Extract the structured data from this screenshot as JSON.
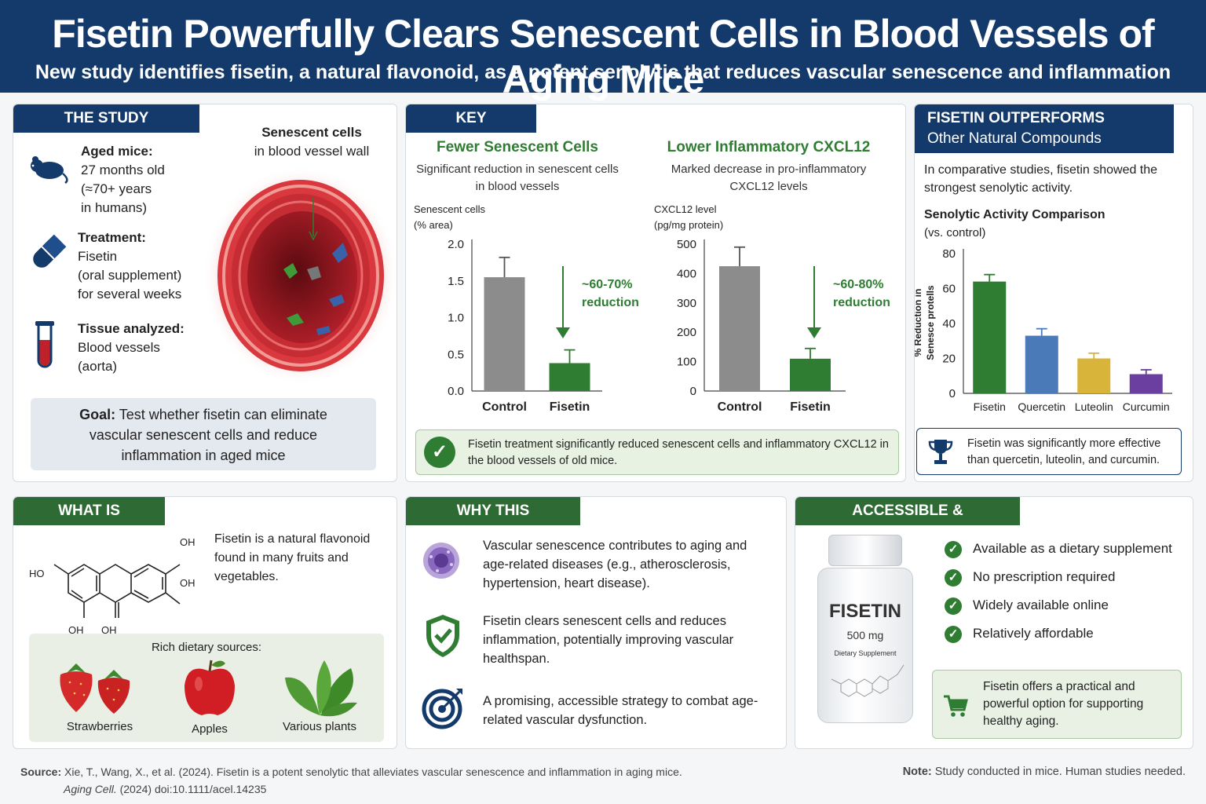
{
  "header": {
    "title": "Fisetin Powerfully Clears Senescent Cells in Blood Vessels of Aging Mice",
    "subtitle": "New study identifies fisetin, a natural flavonoid, as a potent senolytic that reduces vascular senescence and inflammation"
  },
  "study": {
    "tab": "THE STUDY",
    "items": [
      {
        "label": "Aged mice:",
        "lines": [
          "27 months old",
          "(≈70+ years",
          "in humans)"
        ],
        "icon": "mouse-icon"
      },
      {
        "label": "Treatment:",
        "lines": [
          "Fisetin",
          "(oral supplement)",
          "for several weeks"
        ],
        "icon": "capsule-icon"
      },
      {
        "label": "Tissue analyzed:",
        "lines": [
          "Blood vessels",
          "(aorta)"
        ],
        "icon": "test-tube-icon"
      }
    ],
    "vessel_label_bold": "Senescent cells",
    "vessel_label": "in blood vessel wall",
    "goal_bold": "Goal:",
    "goal_text": " Test whether fisetin can eliminate vascular senescent cells and reduce inflammation in aged mice"
  },
  "results": {
    "tab": "KEY RESULTS",
    "chart1": {
      "title": "Fewer Senescent Cells",
      "desc": "Significant reduction in senescent cells in blood vessels",
      "reduction": "~60-70%",
      "reduction2": "reduction"
    },
    "chart2": {
      "title": "Lower Inflammatory CXCL12",
      "desc": "Marked decrease in pro-inflammatory CXCL12 levels",
      "reduction": "~60-80%",
      "reduction2": "reduction"
    },
    "summary": "Fisetin treatment significantly reduced senescent cells and inflammatory CXCL12 in the blood vessels of old mice."
  },
  "outperform": {
    "tab1": "FISETIN OUTPERFORMS",
    "tab2": "Other Natural Compounds",
    "text": "In comparative studies, fisetin showed the strongest senolytic activity.",
    "chart_title": "Senolytic Activity Comparison",
    "chart_sub": "(vs. control)",
    "note": "Fisetin was significantly more effective than quercetin, luteolin, and curcumin."
  },
  "what": {
    "tab": "WHAT IS FISETIN?",
    "text": "Fisetin is a natural flavonoid found in many fruits and vegetables.",
    "sources_title": "Rich dietary sources:",
    "sources": [
      "Strawberries",
      "Apples",
      "Various plants"
    ],
    "mol": {
      "oh1": "OH",
      "oh2": "OH",
      "ho": "HO",
      "oh3": "OH",
      "oh4": "OH"
    }
  },
  "why": {
    "tab": "WHY THIS MATTERS",
    "items": [
      {
        "text": "Vascular senescence contributes to aging and age-related diseases (e.g., atherosclerosis, hypertension, heart disease).",
        "icon": "cell-icon"
      },
      {
        "text": "Fisetin clears senescent cells and reduces inflammation, potentially improving vascular healthspan.",
        "icon": "shield-check-icon"
      },
      {
        "text": "A promising, accessible strategy to combat age-related vascular dysfunction.",
        "icon": "target-icon"
      }
    ]
  },
  "access": {
    "tab": "ACCESSIBLE & AFFORDABLE",
    "bottle_name": "FISETIN",
    "bottle_dose": "500 mg",
    "bottle_type": "Dietary Supplement",
    "checks": [
      "Available as a dietary supplement",
      "No prescription required",
      "Widely available online",
      "Relatively affordable"
    ],
    "note": "Fisetin offers a practical and powerful option for supporting healthy aging."
  },
  "footer": {
    "source_label": "Source:",
    "source": "Xie, T., Wang, X., et al. (2024). Fisetin is a potent senolytic that alleviates vascular senescence and inflammation in aging mice.",
    "journal": "Aging Cell.",
    "journal_rest": " (2024) doi:10.1111/acel.14235",
    "note_label": "Note:",
    "note": " Study conducted in mice. Human studies needed."
  },
  "colors": {
    "navy": "#133a6b",
    "green": "#2e7d32",
    "gray_bar": "#8c8c8c",
    "blue_bar": "#4a7ab8",
    "yellow_bar": "#d9b43a",
    "purple_bar": "#6a3fa0"
  },
  "chart_data": [
    {
      "type": "bar",
      "ylabel": "Senescent cells (% area)",
      "categories": [
        "Control",
        "Fisetin"
      ],
      "values": [
        1.55,
        0.38
      ],
      "errors": [
        0.27,
        0.18
      ],
      "ylim": [
        0,
        2.0
      ],
      "ticks": [
        0.0,
        0.5,
        1.0,
        1.5,
        2.0
      ],
      "tick_labels": [
        "0.0",
        "0.5",
        "1.0",
        "1.5",
        "2.0"
      ],
      "ylabel_lines": [
        "Senescent cells",
        "(% area)"
      ]
    },
    {
      "type": "bar",
      "ylabel": "CXCL12 level (pg/mg protein)",
      "categories": [
        "Control",
        "Fisetin"
      ],
      "values": [
        425,
        110
      ],
      "errors": [
        65,
        35
      ],
      "ylim": [
        0,
        500
      ],
      "ticks": [
        0,
        100,
        200,
        300,
        400,
        500
      ],
      "tick_labels": [
        "0",
        "100",
        "200",
        "300",
        "400",
        "500"
      ],
      "ylabel_lines": [
        "CXCL12 level",
        "(pg/mg protein)"
      ]
    },
    {
      "type": "bar",
      "ylabel": "% Reduction in Senesce protells",
      "categories": [
        "Fisetin",
        "Quercetin",
        "Luteolin",
        "Curcumin"
      ],
      "values": [
        64,
        33,
        20,
        11
      ],
      "errors": [
        4,
        4,
        3,
        2.5
      ],
      "ylim": [
        0,
        80
      ],
      "ticks": [
        0,
        20,
        40,
        60,
        80
      ],
      "tick_labels": [
        "0",
        "20",
        "40",
        "60",
        "80"
      ],
      "ylabel_lines": [
        "% Reduction in",
        "Senesce protells"
      ]
    }
  ]
}
